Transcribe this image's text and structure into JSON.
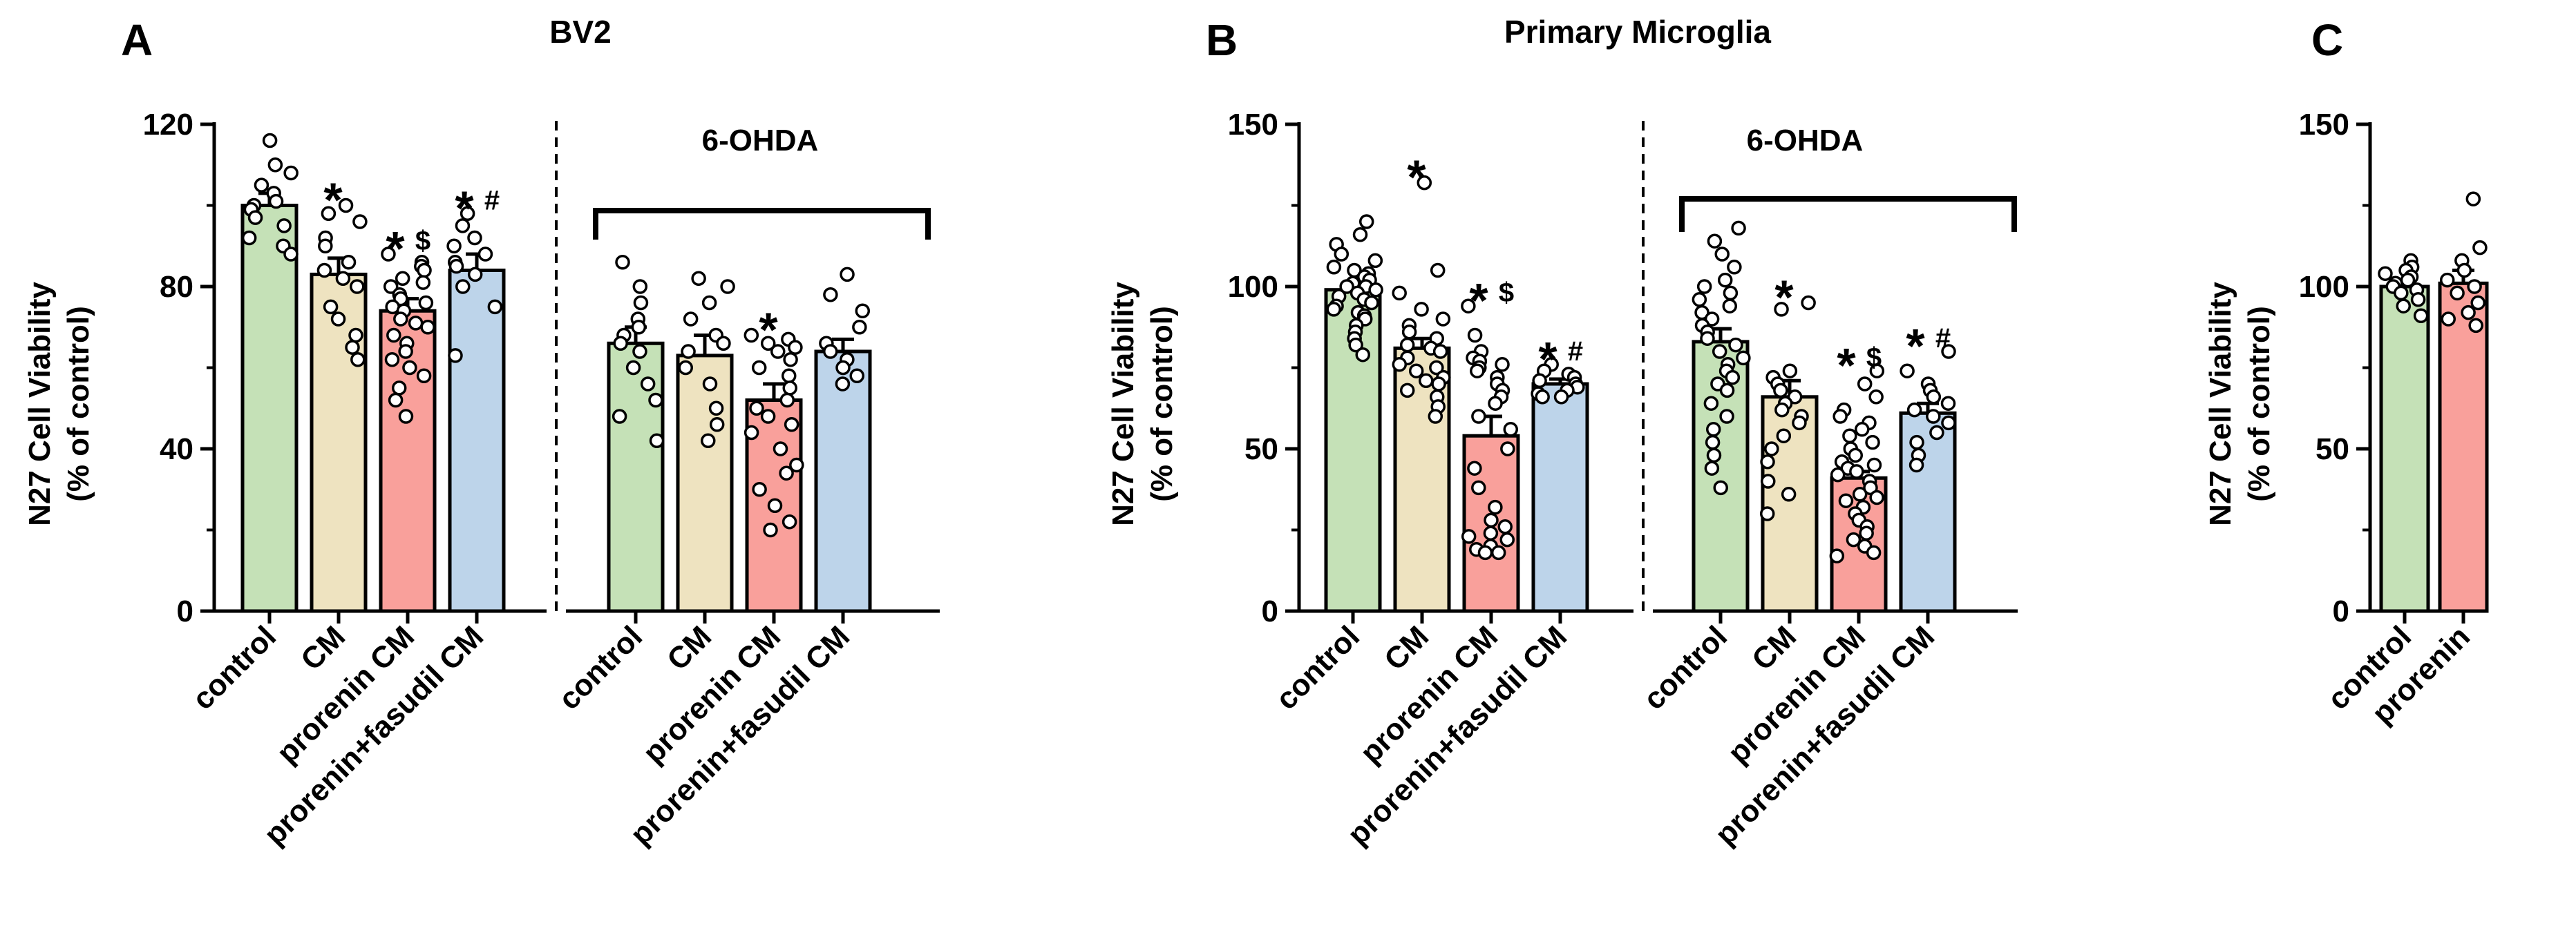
{
  "chart_data": [
    {
      "type": "bar",
      "panel": "A",
      "title": "BV2",
      "ylabel": "N27 Cell Viability",
      "ylabel2": "(% of control)",
      "ylim": [
        0,
        120
      ],
      "yticks": [
        0,
        40,
        80,
        120
      ],
      "categories": [
        "control",
        "CM",
        "prorenin CM",
        "prorenin+fasudil CM",
        "control",
        "CM",
        "prorenin CM",
        "prorenin+fasudil CM"
      ],
      "group_label": "6-OHDA",
      "bars": [
        {
          "category": "control",
          "value": 100,
          "sem": 3,
          "color": "#c5e1b7",
          "sig_star": "",
          "sig_sym": "",
          "points": [
            116,
            110,
            108,
            105,
            103,
            101,
            100,
            99,
            97,
            95,
            92,
            90,
            88
          ]
        },
        {
          "category": "CM",
          "value": 83,
          "sem": 4,
          "color": "#eee3c0",
          "sig_star": "*",
          "sig_sym": "",
          "points": [
            100,
            98,
            96,
            92,
            90,
            86,
            84,
            82,
            80,
            75,
            72,
            68,
            65,
            62
          ]
        },
        {
          "category": "prorenin CM",
          "value": 74,
          "sem": 3,
          "color": "#f9a09b",
          "sig_star": "*",
          "sig_sym": "$",
          "points": [
            88,
            86,
            85,
            84,
            82,
            81,
            80,
            78,
            77,
            76,
            75,
            74,
            72,
            71,
            70,
            68,
            66,
            64,
            62,
            60,
            58,
            55,
            52,
            48
          ]
        },
        {
          "category": "prorenin+fasudil CM",
          "value": 84,
          "sem": 4,
          "color": "#bdd4ea",
          "sig_star": "*",
          "sig_sym": "#",
          "points": [
            98,
            95,
            92,
            90,
            88,
            86,
            85,
            83,
            80,
            75,
            63
          ]
        },
        {
          "category": "control",
          "value": 66,
          "sem": 4,
          "color": "#c5e1b7",
          "sig_star": "",
          "sig_sym": "",
          "points": [
            86,
            80,
            76,
            72,
            70,
            68,
            66,
            64,
            60,
            56,
            52,
            48,
            42
          ]
        },
        {
          "category": "CM",
          "value": 63,
          "sem": 5,
          "color": "#eee3c0",
          "sig_star": "",
          "sig_sym": "",
          "points": [
            82,
            80,
            76,
            72,
            68,
            66,
            64,
            60,
            56,
            50,
            46,
            42
          ]
        },
        {
          "category": "prorenin CM",
          "value": 52,
          "sem": 4,
          "color": "#f9a09b",
          "sig_star": "*",
          "sig_sym": "",
          "points": [
            68,
            67,
            66,
            65,
            64,
            62,
            60,
            58,
            55,
            52,
            50,
            48,
            46,
            44,
            40,
            36,
            34,
            30,
            26,
            22,
            20
          ]
        },
        {
          "category": "prorenin+fasudil CM",
          "value": 64,
          "sem": 3,
          "color": "#bdd4ea",
          "sig_star": "",
          "sig_sym": "",
          "points": [
            83,
            78,
            74,
            70,
            66,
            64,
            62,
            60,
            58,
            56
          ]
        }
      ]
    },
    {
      "type": "bar",
      "panel": "B",
      "title": "Primary Microglia",
      "ylabel": "N27 Cell Viability",
      "ylabel2": "(% of control)",
      "ylim": [
        0,
        150
      ],
      "yticks": [
        0,
        50,
        100,
        150
      ],
      "categories": [
        "control",
        "CM",
        "prorenin CM",
        "prorenin+fasudil CM",
        "control",
        "CM",
        "prorenin CM",
        "prorenin+fasudil CM"
      ],
      "group_label": "6-OHDA",
      "bars": [
        {
          "category": "control",
          "value": 99,
          "sem": 1.5,
          "color": "#c5e1b7",
          "sig_star": "",
          "sig_sym": "",
          "points": [
            120,
            116,
            113,
            110,
            108,
            106,
            105,
            104,
            103,
            102,
            101,
            100,
            100,
            99,
            98,
            97,
            96,
            95,
            94,
            93,
            92,
            91,
            90,
            88,
            86,
            84,
            82,
            79
          ]
        },
        {
          "category": "CM",
          "value": 81,
          "sem": 3,
          "color": "#eee3c0",
          "sig_star": "*",
          "sig_sym": "",
          "points": [
            132,
            105,
            98,
            93,
            90,
            88,
            86,
            84,
            82,
            81,
            80,
            78,
            76,
            75,
            74,
            72,
            71,
            70,
            68,
            66,
            63,
            60
          ]
        },
        {
          "category": "prorenin CM",
          "value": 54,
          "sem": 6,
          "color": "#f9a09b",
          "sig_star": "*",
          "sig_sym": "$",
          "points": [
            94,
            85,
            80,
            78,
            77,
            76,
            75,
            74,
            72,
            70,
            68,
            66,
            64,
            60,
            56,
            50,
            44,
            38,
            32,
            28,
            26,
            24,
            23,
            22,
            20,
            19,
            18,
            18
          ]
        },
        {
          "category": "prorenin+fasudil CM",
          "value": 70,
          "sem": 1.5,
          "color": "#bdd4ea",
          "sig_star": "*",
          "sig_sym": "#",
          "points": [
            76,
            74,
            73,
            72,
            71,
            70,
            69,
            68,
            67,
            66,
            66
          ]
        },
        {
          "category": "control",
          "value": 83,
          "sem": 4,
          "color": "#c5e1b7",
          "sig_star": "",
          "sig_sym": "",
          "points": [
            118,
            114,
            110,
            106,
            102,
            100,
            98,
            96,
            94,
            92,
            90,
            88,
            86,
            84,
            82,
            80,
            78,
            76,
            74,
            72,
            70,
            68,
            64,
            60,
            56,
            52,
            48,
            44,
            38
          ]
        },
        {
          "category": "CM",
          "value": 66,
          "sem": 5,
          "color": "#eee3c0",
          "sig_star": "*",
          "sig_sym": "",
          "points": [
            95,
            93,
            74,
            72,
            70,
            68,
            66,
            64,
            62,
            60,
            58,
            54,
            50,
            46,
            40,
            36,
            30
          ]
        },
        {
          "category": "prorenin CM",
          "value": 41,
          "sem": 2,
          "color": "#f9a09b",
          "sig_star": "*",
          "sig_sym": "$",
          "points": [
            74,
            70,
            66,
            62,
            60,
            58,
            56,
            54,
            52,
            50,
            48,
            46,
            45,
            44,
            43,
            42,
            40,
            38,
            36,
            35,
            34,
            32,
            30,
            28,
            26,
            24,
            22,
            20,
            18,
            17
          ]
        },
        {
          "category": "prorenin+fasudil CM",
          "value": 61,
          "sem": 3,
          "color": "#bdd4ea",
          "sig_star": "*",
          "sig_sym": "#",
          "points": [
            80,
            74,
            70,
            68,
            66,
            64,
            62,
            60,
            58,
            55,
            52,
            48,
            45
          ]
        }
      ]
    },
    {
      "type": "bar",
      "panel": "C",
      "title": "",
      "ylabel": "N27 Cell Viability",
      "ylabel2": "(% of control)",
      "ylim": [
        0,
        150
      ],
      "yticks": [
        0,
        50,
        100,
        150
      ],
      "categories": [
        "control",
        "prorenin"
      ],
      "group_label": "",
      "bars": [
        {
          "category": "control",
          "value": 100,
          "sem": 2,
          "color": "#c5e1b7",
          "sig_star": "",
          "sig_sym": "",
          "points": [
            108,
            106,
            105,
            104,
            103,
            102,
            101,
            100,
            99,
            98,
            96,
            94,
            91
          ]
        },
        {
          "category": "prorenin",
          "value": 101,
          "sem": 4,
          "color": "#f9a09b",
          "sig_star": "",
          "sig_sym": "",
          "points": [
            127,
            112,
            108,
            105,
            102,
            100,
            98,
            95,
            92,
            90,
            88
          ]
        }
      ]
    }
  ]
}
